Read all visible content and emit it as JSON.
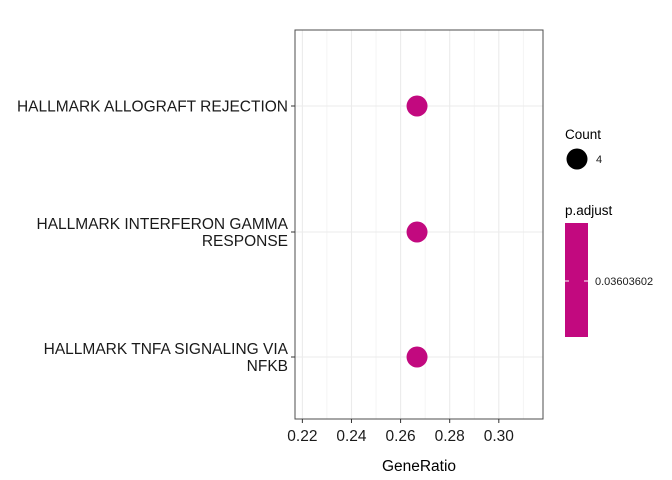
{
  "chart_data": {
    "type": "scatter",
    "title": "",
    "xlabel": "GeneRatio",
    "ylabel": "",
    "xlim": [
      0.217,
      0.318
    ],
    "xticks": [
      0.22,
      0.24,
      0.26,
      0.28,
      0.3
    ],
    "xtick_labels": [
      "0.22",
      "0.24",
      "0.26",
      "0.28",
      "0.30"
    ],
    "categories": [
      [
        "HALLMARK ALLOGRAFT REJECTION"
      ],
      [
        "HALLMARK INTERFERON GAMMA",
        "RESPONSE"
      ],
      [
        "HALLMARK TNFA SIGNALING VIA",
        "NFKB"
      ]
    ],
    "points": [
      {
        "x": 0.2667,
        "count": 4,
        "p_adjust": 0.03603602
      },
      {
        "x": 0.2667,
        "count": 4,
        "p_adjust": 0.03603602
      },
      {
        "x": 0.2667,
        "count": 4,
        "p_adjust": 0.03603602
      }
    ],
    "grid": true,
    "legend": {
      "placement": "right",
      "size_title": "Count",
      "size_entries": [
        "4"
      ],
      "color_title": "p.adjust",
      "color_entries": [
        "0.03603602"
      ],
      "color": "#c2097f"
    }
  }
}
